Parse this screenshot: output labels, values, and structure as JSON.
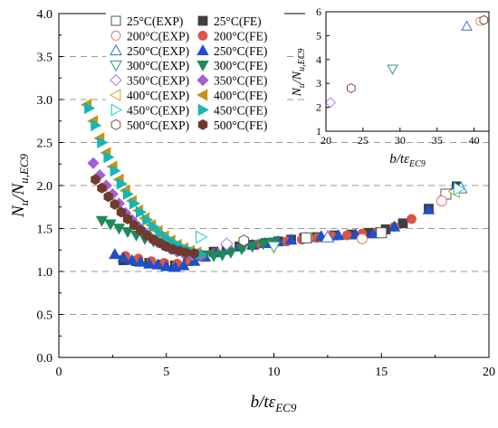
{
  "chart_data": [
    {
      "type": "scatter",
      "title": "",
      "xlabel": "b/tε",
      "xlabel_sub": "EC9",
      "ylabel": "N",
      "ylabel_sub": "u",
      "ylabel_mid": "/N",
      "ylabel_sub2": "u,EC9",
      "xlim": [
        0,
        20
      ],
      "ylim": [
        0,
        4.0
      ],
      "xticks": [
        "0",
        "5",
        "10",
        "15",
        "20"
      ],
      "yticks": [
        "0.0",
        "0.5",
        "1.0",
        "1.5",
        "2.0",
        "2.5",
        "3.0",
        "3.5",
        "4.0"
      ],
      "grid": "horizontal dashed",
      "legend_position": "top-center",
      "legend": [
        "25°C(EXP)",
        "25°C(FE)",
        "200°C(EXP)",
        "200°C(FE)",
        "250°C(EXP)",
        "250°C(FE)",
        "300°C(EXP)",
        "300°C(FE)",
        "350°C(EXP)",
        "350°C(FE)",
        "400°C(EXP)",
        "400°C(FE)",
        "450°C(EXP)",
        "450°C(FE)",
        "500°C(EXP)",
        "500°C(FE)"
      ],
      "series": [
        {
          "name": "25°C(EXP)",
          "marker": "square",
          "filled": false,
          "color": "#555555",
          "x": [
            11.5,
            15.0,
            18.0
          ],
          "y": [
            1.39,
            1.45,
            1.9
          ]
        },
        {
          "name": "25°C(FE)",
          "marker": "square",
          "filled": true,
          "color": "#3f3f3f",
          "x": [
            3.0,
            3.6,
            4.2,
            4.8,
            5.4,
            6.0,
            6.6,
            7.2,
            7.8,
            8.4,
            9.0,
            9.6,
            10.2,
            10.8,
            11.4,
            12.0,
            12.8,
            13.6,
            14.4,
            15.2,
            16.0,
            17.2,
            18.5
          ],
          "y": [
            1.13,
            1.12,
            1.1,
            1.08,
            1.07,
            1.12,
            1.18,
            1.23,
            1.26,
            1.29,
            1.31,
            1.33,
            1.35,
            1.37,
            1.39,
            1.4,
            1.42,
            1.43,
            1.45,
            1.49,
            1.56,
            1.73,
            1.99
          ]
        },
        {
          "name": "200°C(EXP)",
          "marker": "circle",
          "filled": false,
          "color": "#e07b6a",
          "x": [
            14.1,
            17.8
          ],
          "y": [
            1.38,
            1.82
          ]
        },
        {
          "name": "200°C(FE)",
          "marker": "circle",
          "filled": true,
          "color": "#d65745",
          "x": [
            3.1,
            3.7,
            4.3,
            4.9,
            5.5,
            6.1,
            6.7,
            7.3,
            7.9,
            8.5,
            9.2,
            9.9,
            10.6,
            11.3,
            12.0,
            12.7,
            13.4,
            14.1,
            14.8,
            15.6,
            16.4,
            17.8
          ],
          "y": [
            1.18,
            1.15,
            1.12,
            1.1,
            1.09,
            1.12,
            1.17,
            1.22,
            1.26,
            1.29,
            1.31,
            1.33,
            1.35,
            1.37,
            1.39,
            1.41,
            1.42,
            1.44,
            1.46,
            1.52,
            1.61,
            1.83
          ]
        },
        {
          "name": "250°C(EXP)",
          "marker": "triangle-up",
          "filled": false,
          "color": "#3a6fd0",
          "x": [
            12.5,
            18.7
          ],
          "y": [
            1.4,
            1.97
          ]
        },
        {
          "name": "250°C(FE)",
          "marker": "triangle-up",
          "filled": true,
          "color": "#1f4fc9",
          "x": [
            2.6,
            3.0,
            3.4,
            3.8,
            4.2,
            4.6,
            5.0,
            5.4,
            5.8,
            6.3,
            6.8,
            7.3,
            7.8,
            8.4,
            9.0,
            9.6,
            10.2,
            10.8,
            11.5,
            12.2,
            13.0,
            13.8,
            14.6,
            15.6,
            17.2,
            18.4
          ],
          "y": [
            1.2,
            1.16,
            1.13,
            1.11,
            1.09,
            1.08,
            1.06,
            1.05,
            1.07,
            1.12,
            1.17,
            1.22,
            1.25,
            1.29,
            1.31,
            1.33,
            1.35,
            1.37,
            1.39,
            1.41,
            1.42,
            1.43,
            1.44,
            1.52,
            1.72,
            1.97
          ]
        },
        {
          "name": "300°C(EXP)",
          "marker": "triangle-down",
          "filled": false,
          "color": "#2a9d6e",
          "x": [
            10.0
          ],
          "y": [
            1.29
          ]
        },
        {
          "name": "300°C(FE)",
          "marker": "triangle-down",
          "filled": true,
          "color": "#1d8a5a",
          "x": [
            2.0,
            2.4,
            2.8,
            3.2,
            3.6,
            4.0,
            4.4,
            4.8,
            5.2,
            5.6,
            6.0,
            6.4,
            6.8,
            7.2,
            7.6,
            8.0,
            8.5,
            9.0,
            9.5,
            10.0
          ],
          "y": [
            1.59,
            1.55,
            1.5,
            1.46,
            1.42,
            1.38,
            1.35,
            1.31,
            1.28,
            1.25,
            1.22,
            1.2,
            1.19,
            1.18,
            1.19,
            1.22,
            1.26,
            1.29,
            1.32,
            1.34
          ]
        },
        {
          "name": "350°C(EXP)",
          "marker": "diamond",
          "filled": false,
          "color": "#b07ae0",
          "x": [
            7.8
          ],
          "y": [
            1.32
          ]
        },
        {
          "name": "350°C(FE)",
          "marker": "diamond",
          "filled": true,
          "color": "#a35fd6",
          "x": [
            1.6,
            1.9,
            2.2,
            2.5,
            2.8,
            3.1,
            3.4,
            3.7,
            4.0,
            4.3,
            4.6,
            4.9,
            5.2,
            5.5,
            5.8,
            6.2,
            6.6
          ],
          "y": [
            2.26,
            2.12,
            2.0,
            1.9,
            1.79,
            1.68,
            1.6,
            1.52,
            1.45,
            1.39,
            1.34,
            1.3,
            1.26,
            1.23,
            1.21,
            1.19,
            1.18
          ]
        },
        {
          "name": "400°C(EXP)",
          "marker": "triangle-left",
          "filled": false,
          "color": "#c9a227",
          "x": [
            18.4
          ],
          "y": [
            1.93
          ]
        },
        {
          "name": "400°C(FE)",
          "marker": "triangle-left",
          "filled": true,
          "color": "#c39516",
          "x": [
            1.3,
            1.6,
            1.9,
            2.2,
            2.5,
            2.8,
            3.1,
            3.4,
            3.7,
            4.0,
            4.3,
            4.6,
            4.9,
            5.2,
            5.5,
            5.8,
            6.1,
            6.4
          ],
          "y": [
            2.94,
            2.75,
            2.55,
            2.38,
            2.22,
            2.07,
            1.94,
            1.82,
            1.71,
            1.62,
            1.54,
            1.47,
            1.41,
            1.36,
            1.31,
            1.27,
            1.24,
            1.22
          ]
        },
        {
          "name": "450°C(EXP)",
          "marker": "triangle-right",
          "filled": false,
          "color": "#1ec8c8",
          "x": [
            6.6,
            18.6
          ],
          "y": [
            1.4,
            1.96
          ]
        },
        {
          "name": "450°C(FE)",
          "marker": "triangle-right",
          "filled": true,
          "color": "#16b5b5",
          "x": [
            1.4,
            1.7,
            2.0,
            2.3,
            2.6,
            2.9,
            3.2,
            3.5,
            3.8,
            4.1,
            4.4,
            4.7,
            5.0,
            5.3,
            5.6,
            5.9,
            6.2,
            6.6
          ],
          "y": [
            2.9,
            2.7,
            2.5,
            2.33,
            2.17,
            2.02,
            1.9,
            1.79,
            1.69,
            1.6,
            1.52,
            1.45,
            1.39,
            1.34,
            1.3,
            1.26,
            1.23,
            1.2
          ]
        },
        {
          "name": "500°C(EXP)",
          "marker": "hexagon",
          "filled": false,
          "color": "#7a4a3a",
          "x": [
            8.6
          ],
          "y": [
            1.36
          ]
        },
        {
          "name": "500°C(FE)",
          "marker": "hexagon",
          "filled": true,
          "color": "#6e3b2e",
          "x": [
            1.7,
            2.0,
            2.3,
            2.6,
            2.9,
            3.2,
            3.5,
            3.8,
            4.1,
            4.4,
            4.7,
            5.0,
            5.3,
            5.6,
            5.9,
            6.3
          ],
          "y": [
            2.07,
            1.97,
            1.87,
            1.78,
            1.69,
            1.61,
            1.54,
            1.48,
            1.42,
            1.37,
            1.33,
            1.29,
            1.26,
            1.24,
            1.22,
            1.21
          ]
        }
      ]
    },
    {
      "type": "scatter",
      "title": "",
      "xlabel": "b/tε",
      "xlabel_sub": "EC9",
      "ylabel": "N",
      "ylabel_sub": "u",
      "ylabel_mid": "/N",
      "ylabel_sub2": "u,EC9",
      "xlim": [
        20,
        42
      ],
      "ylim": [
        1,
        6
      ],
      "xticks": [
        "20",
        "25",
        "30",
        "35",
        "40"
      ],
      "yticks": [
        "1",
        "2",
        "3",
        "4",
        "5",
        "6"
      ],
      "series": [
        {
          "name": "350°C(EXP)",
          "marker": "diamond",
          "filled": false,
          "color": "#b07ae0",
          "x": [
            20.6
          ],
          "y": [
            2.2
          ]
        },
        {
          "name": "500°C(EXP)",
          "marker": "hexagon",
          "filled": false,
          "color": "#7a4a3a",
          "x": [
            23.4
          ],
          "y": [
            2.8
          ]
        },
        {
          "name": "300°C(EXP)",
          "marker": "triangle-down",
          "filled": false,
          "color": "#2a9d6e",
          "x": [
            29.0
          ],
          "y": [
            3.6
          ]
        },
        {
          "name": "250°C(EXP)",
          "marker": "triangle-up",
          "filled": false,
          "color": "#3a6fd0",
          "x": [
            39.0
          ],
          "y": [
            5.4
          ]
        },
        {
          "name": "200°C(EXP)",
          "marker": "circle",
          "filled": false,
          "color": "#e07b6a",
          "x": [
            40.8
          ],
          "y": [
            5.6
          ]
        },
        {
          "name": "500°C(EXP)",
          "marker": "hexagon",
          "filled": false,
          "color": "#7a4a3a",
          "x": [
            41.3
          ],
          "y": [
            5.65
          ]
        }
      ]
    }
  ]
}
